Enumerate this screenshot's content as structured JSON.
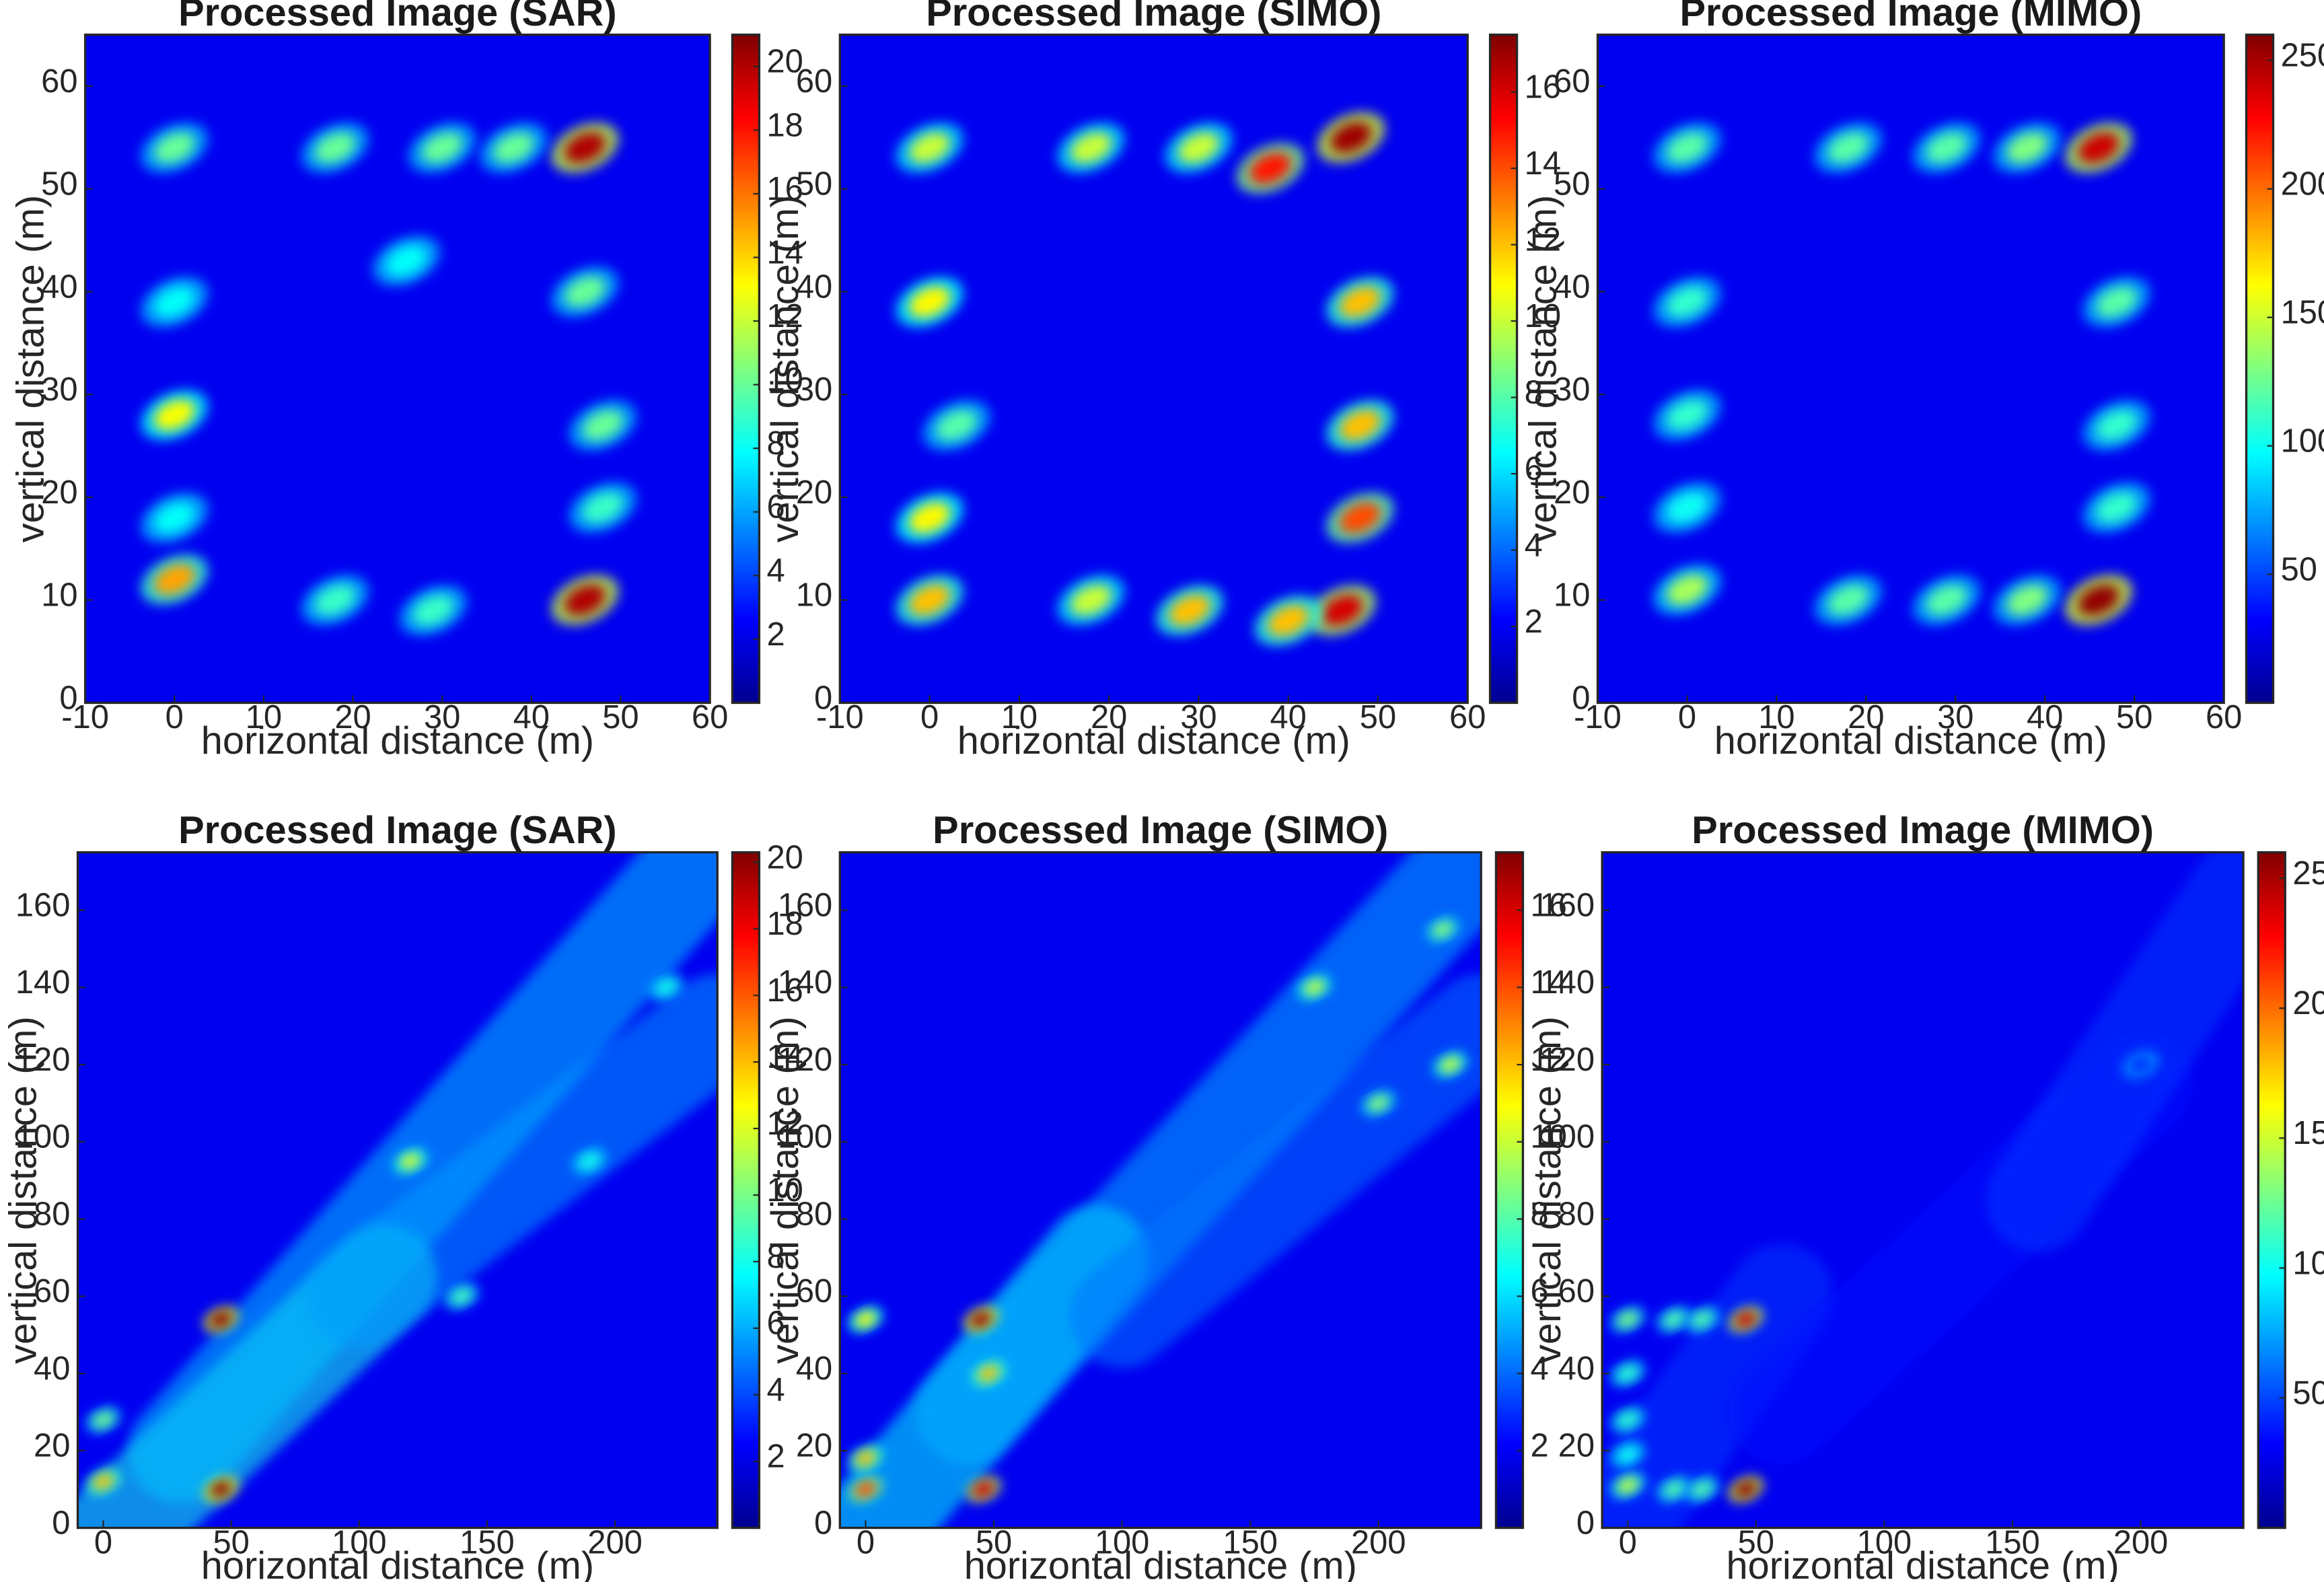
{
  "chart_data": [
    {
      "type": "heatmap",
      "title": "Processed Image (SAR)",
      "xlabel": "horizontal distance (m)",
      "ylabel": "vertical distance (m)",
      "xlim": [
        -10,
        60
      ],
      "ylim": [
        0,
        65
      ],
      "xticks": [
        -10,
        0,
        10,
        20,
        30,
        40,
        50,
        60
      ],
      "yticks": [
        0,
        10,
        20,
        30,
        40,
        50,
        60
      ],
      "colorbar": {
        "colormap": "jet",
        "range": [
          0,
          21
        ],
        "ticks": [
          2,
          4,
          6,
          8,
          10,
          12,
          14,
          16,
          18,
          20
        ]
      },
      "bright_spots": [
        {
          "x": 46,
          "y": 54,
          "value": 20
        },
        {
          "x": 46,
          "y": 10,
          "value": 20
        },
        {
          "x": 0,
          "y": 12,
          "value": 15
        },
        {
          "x": 0,
          "y": 28,
          "value": 13
        },
        {
          "x": 0,
          "y": 54,
          "value": 10
        },
        {
          "x": 18,
          "y": 54,
          "value": 10
        },
        {
          "x": 30,
          "y": 54,
          "value": 10
        },
        {
          "x": 38,
          "y": 54,
          "value": 10
        },
        {
          "x": 46,
          "y": 40,
          "value": 10
        },
        {
          "x": 48,
          "y": 27,
          "value": 10
        },
        {
          "x": 48,
          "y": 19,
          "value": 9
        },
        {
          "x": 0,
          "y": 39,
          "value": 8
        },
        {
          "x": 0,
          "y": 18,
          "value": 8
        },
        {
          "x": 18,
          "y": 10,
          "value": 9
        },
        {
          "x": 29,
          "y": 9,
          "value": 9
        },
        {
          "x": 26,
          "y": 43,
          "value": 8
        }
      ]
    },
    {
      "type": "heatmap",
      "title": "Processed Image (SIMO)",
      "xlabel": "horizontal distance (m)",
      "ylabel": "vertical distance (m)",
      "xlim": [
        -10,
        60
      ],
      "ylim": [
        0,
        65
      ],
      "xticks": [
        -10,
        0,
        10,
        20,
        30,
        40,
        50,
        60
      ],
      "yticks": [
        0,
        10,
        20,
        30,
        40,
        50,
        60
      ],
      "colorbar": {
        "colormap": "jet",
        "range": [
          0,
          17.5
        ],
        "ticks": [
          2,
          4,
          6,
          8,
          10,
          12,
          14,
          16
        ]
      },
      "bright_spots": [
        {
          "x": 47,
          "y": 55,
          "value": 17
        },
        {
          "x": 38,
          "y": 52,
          "value": 15
        },
        {
          "x": 46,
          "y": 9,
          "value": 16
        },
        {
          "x": 40,
          "y": 8,
          "value": 12
        },
        {
          "x": 0,
          "y": 10,
          "value": 12
        },
        {
          "x": 0,
          "y": 18,
          "value": 11
        },
        {
          "x": 0,
          "y": 39,
          "value": 11
        },
        {
          "x": 0,
          "y": 54,
          "value": 10
        },
        {
          "x": 18,
          "y": 54,
          "value": 10
        },
        {
          "x": 30,
          "y": 54,
          "value": 10
        },
        {
          "x": 48,
          "y": 39,
          "value": 12
        },
        {
          "x": 48,
          "y": 27,
          "value": 12
        },
        {
          "x": 48,
          "y": 18,
          "value": 14
        },
        {
          "x": 18,
          "y": 10,
          "value": 10
        },
        {
          "x": 29,
          "y": 9,
          "value": 12
        },
        {
          "x": 3,
          "y": 27,
          "value": 8
        }
      ]
    },
    {
      "type": "heatmap",
      "title": "Processed Image (MIMO)",
      "xlabel": "horizontal distance (m)",
      "ylabel": "vertical distance (m)",
      "xlim": [
        -10,
        60
      ],
      "ylim": [
        0,
        65
      ],
      "xticks": [
        -10,
        0,
        10,
        20,
        30,
        40,
        50,
        60
      ],
      "yticks": [
        0,
        10,
        20,
        30,
        40,
        50,
        60
      ],
      "colorbar": {
        "colormap": "jet",
        "range": [
          0,
          260
        ],
        "ticks": [
          50,
          100,
          150,
          200,
          250
        ]
      },
      "bright_spots": [
        {
          "x": 46,
          "y": 54,
          "value": 240
        },
        {
          "x": 46,
          "y": 10,
          "value": 255
        },
        {
          "x": 0,
          "y": 54,
          "value": 120
        },
        {
          "x": 18,
          "y": 54,
          "value": 120
        },
        {
          "x": 29,
          "y": 54,
          "value": 120
        },
        {
          "x": 38,
          "y": 54,
          "value": 130
        },
        {
          "x": 0,
          "y": 39,
          "value": 110
        },
        {
          "x": 0,
          "y": 28,
          "value": 110
        },
        {
          "x": 0,
          "y": 19,
          "value": 100
        },
        {
          "x": 0,
          "y": 11,
          "value": 140
        },
        {
          "x": 48,
          "y": 39,
          "value": 120
        },
        {
          "x": 48,
          "y": 27,
          "value": 110
        },
        {
          "x": 48,
          "y": 19,
          "value": 110
        },
        {
          "x": 18,
          "y": 10,
          "value": 120
        },
        {
          "x": 29,
          "y": 10,
          "value": 120
        },
        {
          "x": 38,
          "y": 10,
          "value": 130
        }
      ]
    },
    {
      "type": "heatmap",
      "title": "Processed Image (SAR)",
      "xlabel": "horizontal distance (m)",
      "ylabel": "vertical distance (m)",
      "xlim": [
        -10,
        240
      ],
      "ylim": [
        0,
        175
      ],
      "xticks": [
        0,
        50,
        100,
        150,
        200
      ],
      "yticks": [
        0,
        20,
        40,
        60,
        80,
        100,
        120,
        140,
        160
      ],
      "colorbar": {
        "colormap": "jet",
        "range": [
          0,
          20.3
        ],
        "ticks": [
          2,
          4,
          6,
          8,
          10,
          12,
          14,
          16,
          18,
          20
        ]
      },
      "bright_spots": [
        {
          "x": 46,
          "y": 54,
          "value": 20
        },
        {
          "x": 46,
          "y": 10,
          "value": 20
        },
        {
          "x": 0,
          "y": 12,
          "value": 14
        },
        {
          "x": 0,
          "y": 28,
          "value": 10
        },
        {
          "x": 120,
          "y": 95,
          "value": 12
        },
        {
          "x": 140,
          "y": 60,
          "value": 9
        },
        {
          "x": 190,
          "y": 95,
          "value": 8
        },
        {
          "x": 220,
          "y": 140,
          "value": 8
        }
      ]
    },
    {
      "type": "heatmap",
      "title": "Processed Image (SIMO)",
      "xlabel": "horizontal distance (m)",
      "ylabel": "vertical distance (m)",
      "xlim": [
        -10,
        240
      ],
      "ylim": [
        0,
        175
      ],
      "xticks": [
        0,
        50,
        100,
        150,
        200
      ],
      "yticks": [
        0,
        20,
        40,
        60,
        80,
        100,
        120,
        140,
        160
      ],
      "colorbar": {
        "colormap": "jet",
        "range": [
          0,
          17.5
        ],
        "ticks": [
          2,
          4,
          6,
          8,
          10,
          12,
          14,
          16
        ]
      },
      "bright_spots": [
        {
          "x": 45,
          "y": 54,
          "value": 17
        },
        {
          "x": 46,
          "y": 10,
          "value": 16
        },
        {
          "x": 0,
          "y": 10,
          "value": 14
        },
        {
          "x": 0,
          "y": 18,
          "value": 12
        },
        {
          "x": 48,
          "y": 40,
          "value": 12
        },
        {
          "x": 0,
          "y": 54,
          "value": 11
        },
        {
          "x": 175,
          "y": 140,
          "value": 10
        },
        {
          "x": 228,
          "y": 120,
          "value": 10
        },
        {
          "x": 200,
          "y": 110,
          "value": 9
        },
        {
          "x": 225,
          "y": 155,
          "value": 9
        }
      ]
    },
    {
      "type": "heatmap",
      "title": "Processed Image (MIMO)",
      "xlabel": "horizontal distance (m)",
      "ylabel": "vertical distance (m)",
      "xlim": [
        -10,
        240
      ],
      "ylim": [
        0,
        175
      ],
      "xticks": [
        0,
        50,
        100,
        150,
        200
      ],
      "yticks": [
        0,
        20,
        40,
        60,
        80,
        100,
        120,
        140,
        160
      ],
      "colorbar": {
        "colormap": "jet",
        "range": [
          0,
          260
        ],
        "ticks": [
          50,
          100,
          150,
          200,
          250
        ]
      },
      "bright_spots": [
        {
          "x": 46,
          "y": 54,
          "value": 240
        },
        {
          "x": 46,
          "y": 10,
          "value": 255
        },
        {
          "x": 0,
          "y": 54,
          "value": 130
        },
        {
          "x": 18,
          "y": 54,
          "value": 120
        },
        {
          "x": 29,
          "y": 54,
          "value": 120
        },
        {
          "x": 0,
          "y": 40,
          "value": 110
        },
        {
          "x": 0,
          "y": 28,
          "value": 110
        },
        {
          "x": 0,
          "y": 19,
          "value": 100
        },
        {
          "x": 0,
          "y": 11,
          "value": 150
        },
        {
          "x": 18,
          "y": 10,
          "value": 120
        },
        {
          "x": 29,
          "y": 10,
          "value": 120
        },
        {
          "x": 200,
          "y": 120,
          "value": 40
        }
      ]
    }
  ]
}
